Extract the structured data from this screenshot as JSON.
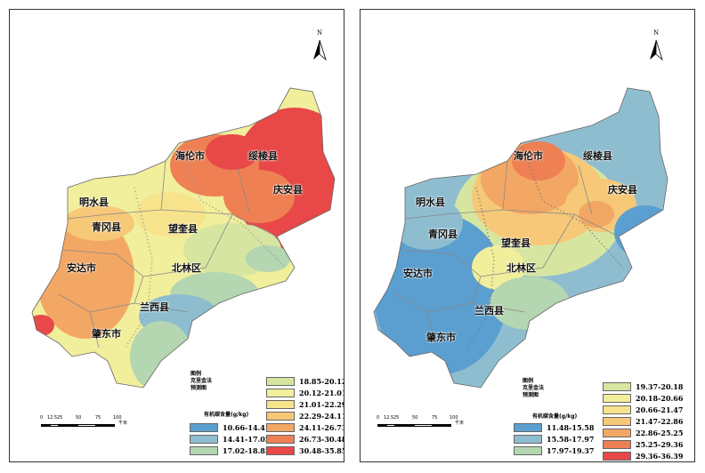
{
  "maps": [
    {
      "legend_title": "图例\n克里金法\n预测图",
      "legend_unit": "有机碳含量(g/kg)",
      "counties": [
        "海伦市",
        "绥棱县",
        "庆安县",
        "明水县",
        "青冈县",
        "望奎县",
        "安达市",
        "北林区",
        "兰西县",
        "肇东市"
      ],
      "legend_items": [
        {
          "label": "10.66-14.41",
          "color": "#5a9fd0"
        },
        {
          "label": "14.41-17.02",
          "color": "#8fbdd0"
        },
        {
          "label": "17.02-18.85",
          "color": "#b4d6b0"
        },
        {
          "label": "18.85-20.12",
          "color": "#d6e6a0"
        },
        {
          "label": "20.12-21.01",
          "color": "#f1ee9c"
        },
        {
          "label": "21.01-22.29",
          "color": "#f7e38c"
        },
        {
          "label": "22.29-24.11",
          "color": "#f6c878"
        },
        {
          "label": "24.11-26.73",
          "color": "#f3a764"
        },
        {
          "label": "26.73-30.48",
          "color": "#ee8054"
        },
        {
          "label": "30.48-35.85",
          "color": "#e84848"
        }
      ],
      "scale_ticks": [
        "0",
        "12.5",
        "25",
        "50",
        "75",
        "100"
      ],
      "scale_unit": "千米",
      "north_label": "N"
    },
    {
      "legend_title": "图例\n克里金法\n预测图",
      "legend_unit": "有机碳含量(g/kg)",
      "counties": [
        "海伦市",
        "绥棱县",
        "庆安县",
        "明水县",
        "青冈县",
        "望奎县",
        "安达市",
        "北林区",
        "兰西县",
        "肇东市"
      ],
      "legend_items": [
        {
          "label": "11.48-15.58",
          "color": "#5a9fd0"
        },
        {
          "label": "15.58-17.97",
          "color": "#8fbdd0"
        },
        {
          "label": "17.97-19.37",
          "color": "#b4d6b0"
        },
        {
          "label": "19.37-20.18",
          "color": "#d6e6a0"
        },
        {
          "label": "20.18-20.66",
          "color": "#f1ee9c"
        },
        {
          "label": "20.66-21.47",
          "color": "#f7e38c"
        },
        {
          "label": "21.47-22.86",
          "color": "#f6c878"
        },
        {
          "label": "22.86-25.25",
          "color": "#f3a764"
        },
        {
          "label": "25.25-29.36",
          "color": "#ee8054"
        },
        {
          "label": "29.36-36.39",
          "color": "#e84848"
        }
      ],
      "scale_ticks": [
        "0",
        "12.5",
        "25",
        "50",
        "75",
        "100"
      ],
      "scale_unit": "千米",
      "north_label": "N"
    }
  ]
}
